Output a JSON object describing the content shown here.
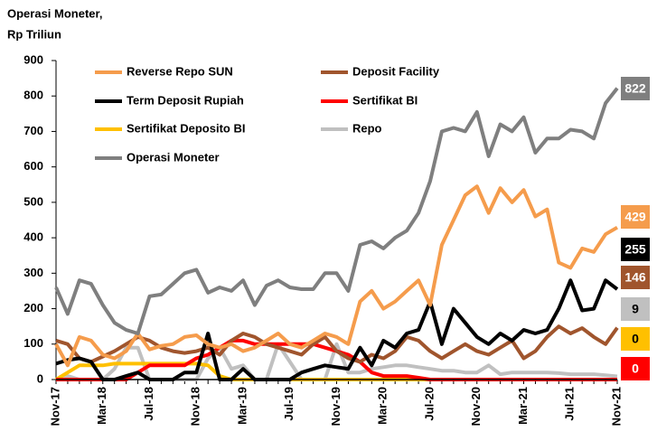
{
  "chart_data": {
    "type": "line",
    "ylabel": [
      "Operasi Moneter,",
      "Rp Triliun"
    ],
    "categories": [
      "Nov-17",
      null,
      null,
      null,
      "Mar-18",
      null,
      null,
      null,
      "Jul-18",
      null,
      null,
      null,
      "Nov-18",
      null,
      null,
      null,
      "Mar-19",
      null,
      null,
      null,
      "Jul-19",
      null,
      null,
      null,
      "Nov-19",
      null,
      null,
      null,
      "Mar-20",
      null,
      null,
      null,
      "Jul-20",
      null,
      null,
      null,
      "Nov-20",
      null,
      null,
      null,
      "Mar-21",
      null,
      null,
      null,
      "Jul-21",
      null,
      null,
      null,
      "Nov-21"
    ],
    "ylim": [
      0,
      900
    ],
    "yticks": [
      0,
      100,
      200,
      300,
      400,
      500,
      600,
      700,
      800,
      900
    ],
    "series": [
      {
        "name": "Reverse Repo SUN",
        "color": "#f59c4c",
        "values": [
          100,
          40,
          120,
          110,
          70,
          60,
          80,
          130,
          85,
          95,
          100,
          120,
          125,
          100,
          90,
          100,
          80,
          90,
          110,
          130,
          100,
          90,
          110,
          130,
          120,
          100,
          220,
          250,
          200,
          220,
          250,
          280,
          210,
          380,
          450,
          520,
          545,
          470,
          540,
          500,
          535,
          460,
          480,
          330,
          315,
          370,
          360,
          410,
          429
        ]
      },
      {
        "name": "Deposit Facility",
        "color": "#a0552d",
        "values": [
          110,
          100,
          60,
          50,
          65,
          80,
          100,
          120,
          110,
          90,
          80,
          75,
          80,
          90,
          70,
          110,
          130,
          120,
          100,
          90,
          80,
          70,
          100,
          120,
          80,
          60,
          50,
          70,
          60,
          80,
          120,
          110,
          80,
          60,
          80,
          100,
          80,
          70,
          90,
          110,
          60,
          80,
          120,
          150,
          130,
          145,
          120,
          100,
          146
        ]
      },
      {
        "name": "Term Deposit Rupiah",
        "color": "#000000",
        "values": [
          45,
          55,
          60,
          50,
          0,
          0,
          10,
          20,
          0,
          0,
          0,
          20,
          20,
          130,
          0,
          0,
          30,
          0,
          0,
          0,
          0,
          20,
          30,
          40,
          35,
          30,
          90,
          40,
          110,
          90,
          130,
          140,
          220,
          100,
          200,
          160,
          120,
          100,
          130,
          110,
          140,
          130,
          140,
          200,
          280,
          195,
          200,
          280,
          255
        ]
      },
      {
        "name": "Sertifikat BI",
        "color": "#ff0000",
        "values": [
          0,
          0,
          0,
          0,
          0,
          0,
          0,
          20,
          40,
          40,
          40,
          40,
          60,
          70,
          90,
          110,
          110,
          100,
          100,
          100,
          100,
          100,
          100,
          90,
          80,
          70,
          50,
          20,
          10,
          10,
          10,
          5,
          0,
          0,
          0,
          0,
          0,
          0,
          0,
          0,
          0,
          0,
          0,
          0,
          0,
          0,
          0,
          0,
          0
        ]
      },
      {
        "name": "Sertifikat Deposito BI",
        "color": "#ffc000",
        "values": [
          0,
          20,
          40,
          40,
          40,
          45,
          45,
          45,
          45,
          45,
          45,
          45,
          45,
          40,
          10,
          0,
          0,
          0,
          0,
          0,
          0,
          0,
          0,
          0,
          0,
          0,
          0,
          0,
          0,
          0,
          0,
          0,
          0,
          0,
          0,
          0,
          0,
          0,
          0,
          0,
          0,
          0,
          0,
          0,
          0,
          0,
          0,
          0,
          0
        ]
      },
      {
        "name": "Repo",
        "color": "#c0c0c0",
        "values": [
          0,
          10,
          0,
          0,
          0,
          30,
          90,
          90,
          0,
          0,
          0,
          0,
          0,
          60,
          90,
          30,
          40,
          0,
          0,
          100,
          50,
          0,
          0,
          0,
          100,
          20,
          20,
          30,
          35,
          40,
          40,
          35,
          30,
          25,
          25,
          20,
          20,
          40,
          15,
          20,
          20,
          20,
          20,
          18,
          15,
          15,
          15,
          12,
          9
        ]
      },
      {
        "name": "Operasi Moneter",
        "color": "#7f7f7f",
        "values": [
          260,
          185,
          280,
          270,
          210,
          160,
          140,
          130,
          235,
          240,
          270,
          300,
          310,
          245,
          260,
          250,
          280,
          210,
          265,
          280,
          260,
          255,
          255,
          300,
          300,
          250,
          380,
          390,
          370,
          400,
          420,
          470,
          560,
          700,
          710,
          700,
          755,
          630,
          720,
          700,
          740,
          640,
          680,
          680,
          705,
          700,
          680,
          780,
          822
        ]
      }
    ]
  }
}
